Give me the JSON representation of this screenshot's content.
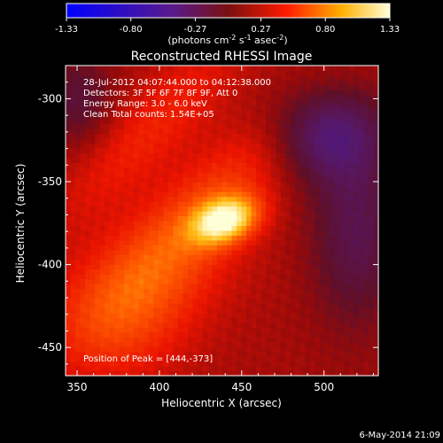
{
  "chart_data": {
    "type": "heatmap",
    "title": "Reconstructed RHESSI Image",
    "xlabel": "Heliocentric X (arcsec)",
    "ylabel": "Heliocentric Y (arcsec)",
    "xlim": [
      343,
      533
    ],
    "ylim": [
      -467,
      -280
    ],
    "x_ticks": [
      350,
      400,
      450,
      500
    ],
    "y_ticks": [
      -300,
      -350,
      -400,
      -450
    ],
    "colorbar": {
      "min": -1.33,
      "max": 1.33,
      "ticks": [
        "-1.33",
        "-0.80",
        "-0.27",
        "0.27",
        "0.80",
        "1.33"
      ],
      "unit_label": "(photons cm",
      "unit_exp1": "-2",
      "unit_mid": " s",
      "unit_exp2": "-1",
      "unit_mid2": " asec",
      "unit_exp3": "-2",
      "unit_close": ")"
    },
    "info_lines": [
      "28-Jul-2012 04:07:44.000 to 04:12:38.000",
      "Detectors: 3F 5F 6F 7F 8F 9F, Att 0",
      "Energy Range: 3.0 - 6.0 keV",
      "Clean    Total counts: 1.54E+05"
    ],
    "peak_text": "Position of Peak = [444,-373]",
    "peak": {
      "x": 444,
      "y": -373,
      "value": 1.33
    },
    "background_level": 0.1,
    "components": [
      {
        "x": 440,
        "y": -373,
        "sx": 14,
        "sy": 9,
        "angle": 20,
        "amp": 1.05
      },
      {
        "x": 425,
        "y": -368,
        "sx": 60,
        "sy": 18,
        "angle": 45,
        "amp": 0.38
      },
      {
        "x": 395,
        "y": -318,
        "sx": 55,
        "sy": 16,
        "angle": 45,
        "amp": 0.28
      },
      {
        "x": 395,
        "y": -410,
        "sx": 40,
        "sy": 25,
        "angle": 30,
        "amp": 0.3
      },
      {
        "x": 375,
        "y": -440,
        "sx": 30,
        "sy": 25,
        "angle": 0,
        "amp": 0.22
      },
      {
        "x": 500,
        "y": -320,
        "sx": 25,
        "sy": 20,
        "angle": 0,
        "amp": -0.55
      },
      {
        "x": 520,
        "y": -380,
        "sx": 20,
        "sy": 40,
        "angle": 0,
        "amp": -0.4
      },
      {
        "x": 350,
        "y": -300,
        "sx": 15,
        "sy": 20,
        "angle": 0,
        "amp": -0.3
      }
    ],
    "footer_date": "6-May-2014 21:09"
  }
}
